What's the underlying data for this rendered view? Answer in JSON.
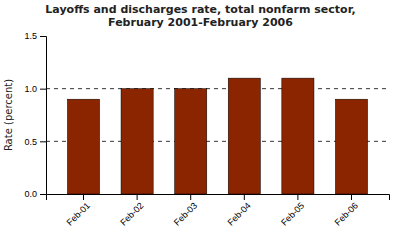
{
  "chart_data": {
    "type": "bar",
    "title": "Layoffs and discharges rate, total nonfarm sector,\nFebruary 2001-February 2006",
    "ylabel": "Rate (percent)",
    "categories": [
      "Feb-01",
      "Feb-02",
      "Feb-03",
      "Feb-04",
      "Feb-05",
      "Feb-06"
    ],
    "values": [
      0.9,
      1.0,
      1.0,
      1.1,
      1.1,
      0.9
    ],
    "color": "#8B2500",
    "ylim": [
      0,
      1.5
    ],
    "yticks": [
      {
        "value": 0.0,
        "label": "0.0"
      },
      0.5,
      {
        "value": 1.0,
        "label": "1.0"
      },
      1.5
    ],
    "grid": true
  }
}
